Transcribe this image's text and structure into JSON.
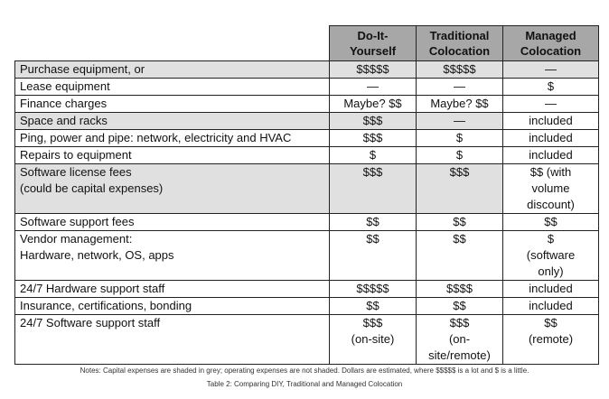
{
  "table": {
    "headers": [
      "",
      "Do-It-\nYourself",
      "Traditional\nColocation",
      "Managed\nColocation"
    ],
    "rows": [
      {
        "label": [
          "Purchase equipment, or"
        ],
        "diy": [
          "$$$$$"
        ],
        "trad": [
          "$$$$$"
        ],
        "managed": [
          "—"
        ],
        "capital": true
      },
      {
        "label": [
          "Lease equipment"
        ],
        "diy": [
          "—"
        ],
        "trad": [
          "—"
        ],
        "managed": [
          "$"
        ],
        "capital": false
      },
      {
        "label": [
          "Finance charges"
        ],
        "diy": [
          "Maybe? $$"
        ],
        "trad": [
          "Maybe? $$"
        ],
        "managed": [
          "—"
        ],
        "capital": false
      },
      {
        "label": [
          "Space and racks"
        ],
        "diy": [
          "$$$"
        ],
        "trad": [
          "—"
        ],
        "managed": [
          "included"
        ],
        "capital": true
      },
      {
        "label": [
          "Ping, power and pipe: network, electricity and HVAC"
        ],
        "diy": [
          "$$$"
        ],
        "trad": [
          "$"
        ],
        "managed": [
          "included"
        ],
        "capital": false
      },
      {
        "label": [
          "Repairs to equipment"
        ],
        "diy": [
          "$"
        ],
        "trad": [
          "$"
        ],
        "managed": [
          "included"
        ],
        "capital": false
      },
      {
        "label": [
          "Software license fees",
          "(could be capital expenses)"
        ],
        "diy": [
          "$$$"
        ],
        "trad": [
          "$$$"
        ],
        "managed": [
          "$$ (with",
          "volume",
          "discount)"
        ],
        "capital": true
      },
      {
        "label": [
          "Software support fees"
        ],
        "diy": [
          "$$"
        ],
        "trad": [
          "$$"
        ],
        "managed": [
          "$$"
        ],
        "capital": false
      },
      {
        "label": [
          "Vendor management:",
          "Hardware, network, OS, apps"
        ],
        "diy": [
          "$$"
        ],
        "trad": [
          "$$"
        ],
        "managed": [
          "$",
          "(software",
          "only)"
        ],
        "capital": false
      },
      {
        "label": [
          "24/7 Hardware support staff"
        ],
        "diy": [
          "$$$$$"
        ],
        "trad": [
          "$$$$"
        ],
        "managed": [
          "included"
        ],
        "capital": false
      },
      {
        "label": [
          "Insurance, certifications, bonding"
        ],
        "diy": [
          "$$"
        ],
        "trad": [
          "$$"
        ],
        "managed": [
          "included"
        ],
        "capital": false
      },
      {
        "label": [
          "24/7 Software support staff"
        ],
        "diy": [
          "$$$",
          "(on-site)"
        ],
        "trad": [
          "$$$",
          "(on-",
          "site/remote)"
        ],
        "managed": [
          "$$",
          "(remote)"
        ],
        "capital": false
      }
    ]
  },
  "notes": "Notes: Capital expenses are shaded in grey; operating expenses are not shaded. Dollars are estimated, where $$$$$ is a lot and $ is a little.",
  "caption": "Table 2: Comparing DIY, Traditional and Managed Colocation",
  "colors": {
    "header_bg": "#a7a7a7",
    "capital_shade": "#e0e0e0",
    "border": "#222222"
  }
}
